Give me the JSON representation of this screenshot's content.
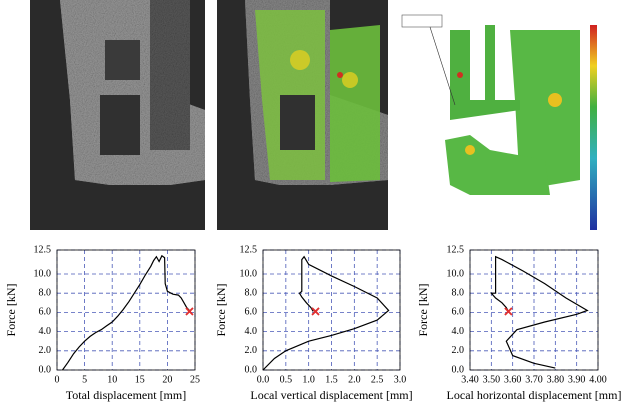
{
  "chart_data": [
    {
      "type": "line",
      "x_label": "Total displacement [mm]",
      "y_label": "Force [kN]",
      "x": [
        1,
        2,
        3,
        4,
        5,
        6,
        7,
        8,
        9,
        10,
        11,
        12,
        13,
        14,
        15,
        16,
        17,
        17.5,
        18,
        18.5,
        19,
        19.5,
        19.6,
        20,
        21,
        22,
        22.5,
        23,
        23.5,
        24
      ],
      "values": [
        0,
        0.8,
        1.7,
        2.4,
        3,
        3.5,
        3.9,
        4.2,
        4.6,
        5.0,
        5.6,
        6.3,
        7.1,
        8,
        8.9,
        9.9,
        10.8,
        11.4,
        11.8,
        11.3,
        11.9,
        11.7,
        9,
        8.2,
        7.9,
        7.8,
        7.5,
        7,
        6.5,
        6.2
      ],
      "color": "#000000",
      "marker": {
        "x": 24,
        "y": 6.1,
        "color": "#e03030"
      },
      "xlim": [
        0,
        25
      ],
      "xticks": [
        0,
        5,
        10,
        15,
        20,
        25
      ],
      "ylim": [
        0,
        12.5
      ],
      "yticks": [
        {
          "value": 0,
          "label": "0.0"
        },
        {
          "value": 2,
          "label": "2.0"
        },
        {
          "value": 4,
          "label": "4.0"
        },
        {
          "value": 6,
          "label": "6.0"
        },
        {
          "value": 8,
          "label": "8.0"
        },
        {
          "value": 10,
          "label": "10.0"
        },
        12.5
      ],
      "grid": true,
      "grid_color": "#4a5ab8"
    },
    {
      "type": "line",
      "x_label": "Local vertical displacement [mm]",
      "y_label": "Force [kN]",
      "x": [
        0,
        0.25,
        0.5,
        1,
        1.5,
        2,
        2.5,
        2.75,
        2.5,
        2,
        1.5,
        1,
        0.9,
        0.85,
        0.85,
        0.8,
        0.85,
        0.95,
        1.05,
        1.1
      ],
      "values": [
        0,
        1.2,
        2,
        3,
        3.6,
        4.3,
        5.2,
        6.2,
        7.5,
        8.7,
        9.8,
        11,
        11.8,
        11.5,
        8.2,
        8.0,
        7.6,
        7,
        6.5,
        6.1
      ],
      "color": "#000000",
      "marker": {
        "x": 1.15,
        "y": 6.1,
        "color": "#e03030"
      },
      "xlim": [
        0,
        3
      ],
      "xticks": [
        {
          "value": 0,
          "label": "0.0"
        },
        0.5,
        {
          "value": 1,
          "label": "1.0"
        },
        1.5,
        {
          "value": 2,
          "label": "2.0"
        },
        2.5,
        {
          "value": 3,
          "label": "3.0"
        }
      ],
      "ylim": [
        0,
        12.5
      ],
      "yticks": [
        {
          "value": 0,
          "label": "0.0"
        },
        {
          "value": 2,
          "label": "2.0"
        },
        {
          "value": 4,
          "label": "4.0"
        },
        {
          "value": 6,
          "label": "6.0"
        },
        {
          "value": 8,
          "label": "8.0"
        },
        {
          "value": 10,
          "label": "10.0"
        },
        12.5
      ],
      "grid": true,
      "grid_color": "#4a5ab8"
    },
    {
      "type": "line",
      "x_label": "Local horizontal displacement [mm]",
      "y_label": "Force [kN]",
      "x": [
        3.8,
        3.7,
        3.6,
        3.57,
        3.62,
        3.75,
        3.9,
        3.95,
        3.85,
        3.75,
        3.65,
        3.55,
        3.52,
        3.52,
        3.5,
        3.52,
        3.55,
        3.57,
        3.58
      ],
      "values": [
        0.2,
        0.7,
        1.5,
        3,
        4.2,
        5,
        5.8,
        6.2,
        7.5,
        9,
        10.3,
        11.5,
        11.8,
        8,
        8,
        7.5,
        7,
        6.5,
        6.1
      ],
      "color": "#000000",
      "marker": {
        "x": 3.58,
        "y": 6.1,
        "color": "#e03030"
      },
      "xlim": [
        3.4,
        4.0
      ],
      "xticks": [
        {
          "value": 3.4,
          "label": "3.40"
        },
        {
          "value": 3.5,
          "label": "3.50"
        },
        {
          "value": 3.6,
          "label": "3.60"
        },
        {
          "value": 3.7,
          "label": "3.70"
        },
        {
          "value": 3.8,
          "label": "3.80"
        },
        {
          "value": 3.9,
          "label": "3.90"
        },
        {
          "value": 4.0,
          "label": "4.00"
        }
      ],
      "ylim": [
        0,
        12.5
      ],
      "yticks": [
        {
          "value": 0,
          "label": "0.0"
        },
        {
          "value": 2,
          "label": "2.0"
        },
        {
          "value": 4,
          "label": "4.0"
        },
        {
          "value": 6,
          "label": "6.0"
        },
        {
          "value": 8,
          "label": "8.0"
        },
        {
          "value": 10,
          "label": "10.0"
        },
        12.5
      ],
      "grid": true,
      "grid_color": "#4a5ab8"
    }
  ]
}
